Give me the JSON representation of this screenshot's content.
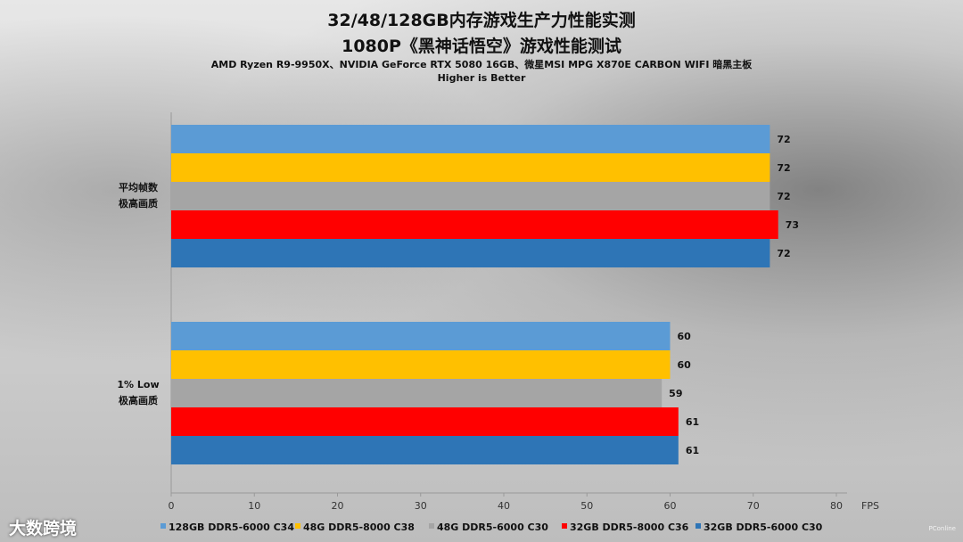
{
  "chart_data": {
    "type": "bar",
    "orientation": "horizontal",
    "title": "32/48/128GB内存游戏生产力性能实测",
    "title2": "1080P《黑神话悟空》游戏性能测试",
    "subtitle": "AMD Ryzen R9-9950X、NVIDIA GeForce RTX 5080 16GB、微星MSI MPG X870E CARBON WIFI 暗黑主板",
    "note": "Higher is Better",
    "xlabel": "FPS",
    "xlim": [
      0,
      80
    ],
    "xticks": [
      0,
      10,
      20,
      30,
      40,
      50,
      60,
      70,
      80
    ],
    "grid": false,
    "legend_position": "bottom",
    "categories": [
      {
        "lines": [
          "平均帧数",
          "极高画质"
        ]
      },
      {
        "lines": [
          "1% Low",
          "极高画质"
        ]
      }
    ],
    "series": [
      {
        "name": "128GB DDR5-6000 C34",
        "color": "#5b9bd5",
        "values": [
          72,
          60
        ]
      },
      {
        "name": "48G DDR5-8000 C38",
        "color": "#ffc000",
        "values": [
          72,
          60
        ]
      },
      {
        "name": "48G DDR5-6000 C30",
        "color": "#a5a5a5",
        "values": [
          72,
          59
        ]
      },
      {
        "name": "32GB DDR5-8000 C36",
        "color": "#ff0000",
        "values": [
          73,
          61
        ]
      },
      {
        "name": "32GB DDR5-6000 C30",
        "color": "#2e75b6",
        "values": [
          72,
          61
        ]
      }
    ]
  },
  "footer": {
    "brand": "大数跨境",
    "watermark": "PConline"
  }
}
